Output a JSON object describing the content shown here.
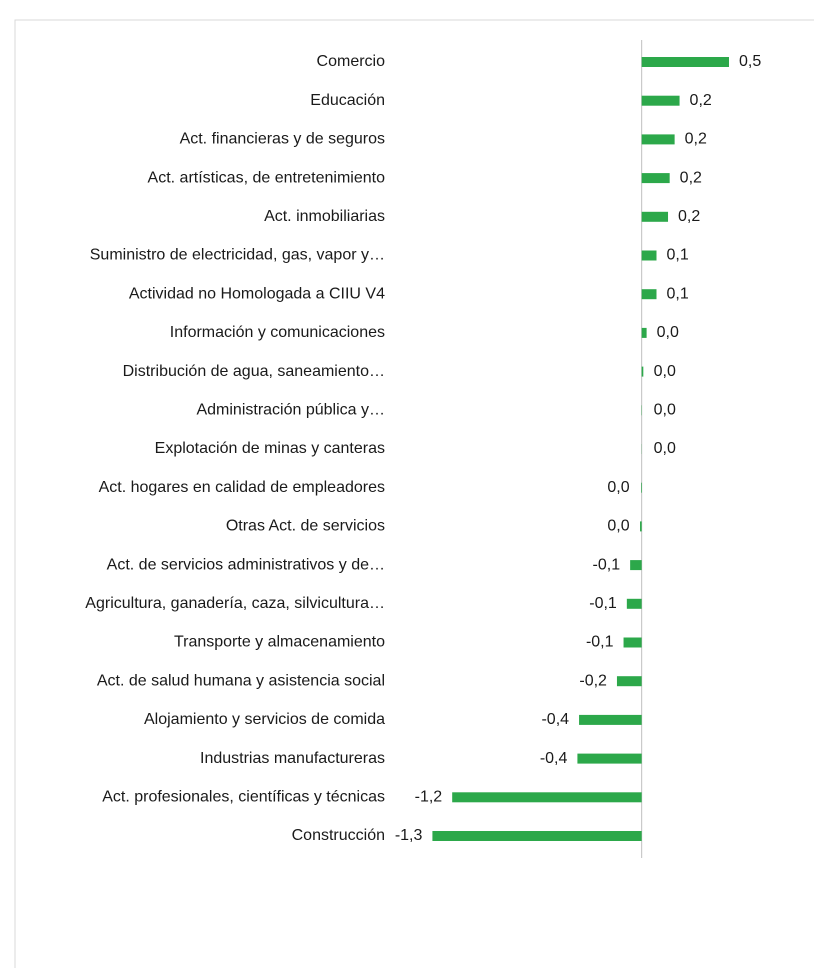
{
  "chart_data": {
    "type": "hbar",
    "categories": [
      "Comercio",
      "Educación",
      "Act. financieras y de seguros",
      "Act. artísticas, de entretenimiento",
      "Act. inmobiliarias",
      "Suministro de electricidad, gas, vapor y…",
      "Actividad no Homologada a CIIU V4",
      "Información y comunicaciones",
      "Distribución de agua, saneamiento…",
      "Administración pública y…",
      "Explotación de minas y canteras",
      "Act. hogares en calidad de empleadores",
      "Otras Act. de servicios",
      "Act. de servicios administrativos y de…",
      "Agricultura, ganadería, caza, silvicultura…",
      "Transporte y almacenamiento",
      "Act. de salud humana y asistencia social",
      "Alojamiento y servicios de comida",
      "Industrias manufactureras",
      "Act. profesionales, científicas y técnicas",
      "Construcción"
    ],
    "values": [
      0.53,
      0.23,
      0.2,
      0.17,
      0.16,
      0.09,
      0.09,
      0.03,
      0.01,
      0.002,
      0.001,
      -0.004,
      -0.01,
      -0.07,
      -0.09,
      -0.11,
      -0.15,
      -0.38,
      -0.39,
      -1.15,
      -1.27
    ],
    "value_labels": [
      "0,5",
      "0,2",
      "0,2",
      "0,2",
      "0,2",
      "0,1",
      "0,1",
      "0,0",
      "0,0",
      "0,0",
      "0,0",
      "0,0",
      "0,0",
      "-0,1",
      "-0,1",
      "-0,1",
      "-0,2",
      "-0,4",
      "-0,4",
      "-1,2",
      "-1,3"
    ],
    "color": "#2ca84a",
    "xlim": [
      -1.4,
      0.7
    ]
  }
}
